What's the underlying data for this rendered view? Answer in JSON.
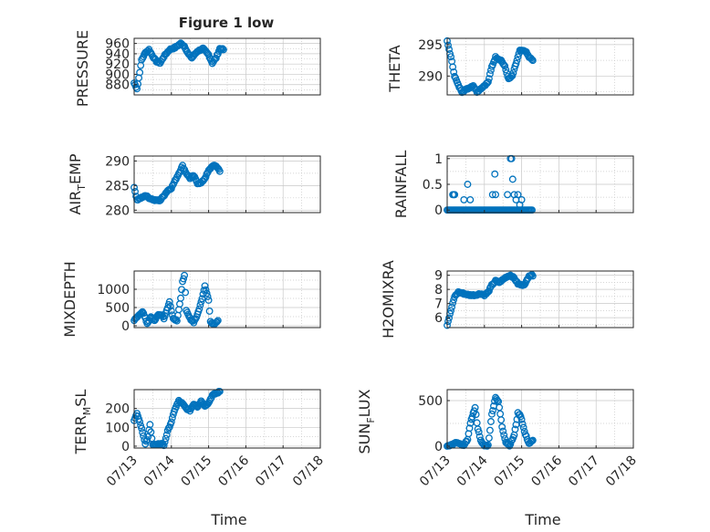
{
  "figure": {
    "title": "Figure 1 low"
  },
  "time_ticks": [
    "07/13",
    "07/14",
    "07/15",
    "07/16",
    "07/17",
    "07/18"
  ],
  "xlabel": "Time",
  "colors": {
    "marker": "#0072BD",
    "axis": "#262626",
    "grid": "#c8c8c8",
    "background": "#ffffff"
  },
  "chart_data": [
    {
      "type": "scatter",
      "ylabel": "PRESSURE",
      "title": "Figure 1 low",
      "xlabel": "",
      "ylim": [
        860,
        970
      ],
      "yticks": [
        880,
        900,
        920,
        940,
        960
      ],
      "xlim": [
        "07/13",
        "07/18"
      ],
      "grid": true,
      "anchors": [
        [
          0,
          883
        ],
        [
          0.08,
          872
        ],
        [
          0.14,
          900
        ],
        [
          0.2,
          928
        ],
        [
          0.3,
          942
        ],
        [
          0.4,
          948
        ],
        [
          0.5,
          935
        ],
        [
          0.6,
          925
        ],
        [
          0.7,
          922
        ],
        [
          0.8,
          935
        ],
        [
          0.95,
          948
        ],
        [
          1.1,
          952
        ],
        [
          1.25,
          960
        ],
        [
          1.35,
          955
        ],
        [
          1.45,
          940
        ],
        [
          1.55,
          932
        ],
        [
          1.7,
          945
        ],
        [
          1.85,
          950
        ],
        [
          2.0,
          938
        ],
        [
          2.1,
          922
        ],
        [
          2.2,
          932
        ],
        [
          2.3,
          950
        ],
        [
          2.4,
          948
        ]
      ]
    },
    {
      "type": "scatter",
      "ylabel": "THETA",
      "xlabel": "",
      "ylim": [
        287,
        296
      ],
      "yticks": [
        290,
        295
      ],
      "xlim": [
        "07/13",
        "07/18"
      ],
      "grid": true,
      "anchors": [
        [
          0,
          295.5
        ],
        [
          0.1,
          293
        ],
        [
          0.2,
          290
        ],
        [
          0.3,
          288.5
        ],
        [
          0.4,
          287.5
        ],
        [
          0.55,
          288
        ],
        [
          0.7,
          288.5
        ],
        [
          0.8,
          287.5
        ],
        [
          0.9,
          288
        ],
        [
          1.0,
          288.5
        ],
        [
          1.1,
          289
        ],
        [
          1.2,
          291.5
        ],
        [
          1.3,
          293
        ],
        [
          1.45,
          292.5
        ],
        [
          1.55,
          291.5
        ],
        [
          1.65,
          289.5
        ],
        [
          1.75,
          290
        ],
        [
          1.85,
          292
        ],
        [
          1.95,
          294
        ],
        [
          2.1,
          294
        ],
        [
          2.2,
          293
        ],
        [
          2.3,
          292.5
        ]
      ]
    },
    {
      "type": "scatter",
      "ylabel": "AIR_TEMP",
      "xlabel": "",
      "ylim": [
        279.5,
        291
      ],
      "yticks": [
        280,
        285,
        290
      ],
      "xlim": [
        "07/13",
        "07/18"
      ],
      "grid": true,
      "anchors": [
        [
          0,
          284.5
        ],
        [
          0.08,
          282
        ],
        [
          0.18,
          282.5
        ],
        [
          0.3,
          283
        ],
        [
          0.4,
          282.5
        ],
        [
          0.55,
          282
        ],
        [
          0.7,
          282
        ],
        [
          0.8,
          283
        ],
        [
          0.9,
          284
        ],
        [
          1.0,
          284.5
        ],
        [
          1.1,
          286
        ],
        [
          1.2,
          287.5
        ],
        [
          1.3,
          289
        ],
        [
          1.4,
          287.5
        ],
        [
          1.5,
          286.5
        ],
        [
          1.6,
          287
        ],
        [
          1.7,
          285.5
        ],
        [
          1.8,
          285.5
        ],
        [
          1.9,
          286.5
        ],
        [
          2.0,
          288
        ],
        [
          2.1,
          289
        ],
        [
          2.2,
          289
        ],
        [
          2.3,
          288
        ]
      ]
    },
    {
      "type": "scatter",
      "ylabel": "RAINFALL",
      "xlabel": "",
      "ylim": [
        -0.05,
        1.05
      ],
      "yticks": [
        0,
        0.5,
        1
      ],
      "xlim": [
        "07/13",
        "07/18"
      ],
      "grid": true,
      "baseline_range": [
        0,
        2.3
      ],
      "nonzero_points": [
        [
          0.15,
          0.3
        ],
        [
          0.18,
          0.3
        ],
        [
          0.2,
          0.3
        ],
        [
          0.45,
          0.2
        ],
        [
          0.55,
          0.5
        ],
        [
          0.62,
          0.2
        ],
        [
          1.22,
          0.3
        ],
        [
          1.28,
          0.7
        ],
        [
          1.3,
          0.3
        ],
        [
          1.62,
          0.3
        ],
        [
          1.7,
          1.0
        ],
        [
          1.73,
          1.0
        ],
        [
          1.76,
          0.6
        ],
        [
          1.8,
          0.3
        ],
        [
          1.85,
          0.2
        ],
        [
          1.9,
          0.3
        ],
        [
          1.95,
          0.1
        ],
        [
          2.0,
          0.2
        ]
      ]
    },
    {
      "type": "scatter",
      "ylabel": "MIXDEPTH",
      "xlabel": "",
      "ylim": [
        -50,
        1500
      ],
      "yticks": [
        0,
        500,
        1000
      ],
      "xlim": [
        "07/13",
        "07/18"
      ],
      "grid": true,
      "anchors": [
        [
          0,
          150
        ],
        [
          0.12,
          280
        ],
        [
          0.22,
          400
        ],
        [
          0.3,
          200
        ],
        [
          0.35,
          50
        ],
        [
          0.45,
          250
        ],
        [
          0.55,
          150
        ],
        [
          0.65,
          300
        ],
        [
          0.75,
          300
        ],
        [
          0.8,
          200
        ],
        [
          0.9,
          500
        ],
        [
          0.95,
          650
        ],
        [
          1.05,
          200
        ],
        [
          1.15,
          150
        ],
        [
          1.25,
          750
        ],
        [
          1.3,
          1200
        ],
        [
          1.35,
          1400
        ],
        [
          1.4,
          400
        ],
        [
          1.5,
          200
        ],
        [
          1.6,
          100
        ],
        [
          1.7,
          300
        ],
        [
          1.8,
          650
        ],
        [
          1.9,
          1100
        ],
        [
          2.0,
          700
        ],
        [
          2.05,
          100
        ],
        [
          2.15,
          50
        ],
        [
          2.25,
          150
        ]
      ]
    },
    {
      "type": "scatter",
      "ylabel": "H2OMIXRA",
      "xlabel": "",
      "ylim": [
        5.3,
        9.3
      ],
      "yticks": [
        6,
        7,
        8,
        9
      ],
      "xlim": [
        "07/13",
        "07/18"
      ],
      "grid": true,
      "anchors": [
        [
          0,
          5.5
        ],
        [
          0.1,
          6.5
        ],
        [
          0.2,
          7.5
        ],
        [
          0.3,
          7.8
        ],
        [
          0.45,
          7.7
        ],
        [
          0.6,
          7.6
        ],
        [
          0.75,
          7.6
        ],
        [
          0.9,
          7.7
        ],
        [
          1.0,
          7.6
        ],
        [
          1.1,
          7.8
        ],
        [
          1.2,
          8.3
        ],
        [
          1.3,
          8.6
        ],
        [
          1.4,
          8.5
        ],
        [
          1.5,
          8.7
        ],
        [
          1.6,
          8.9
        ],
        [
          1.7,
          9.0
        ],
        [
          1.8,
          8.8
        ],
        [
          1.9,
          8.4
        ],
        [
          2.0,
          8.3
        ],
        [
          2.1,
          8.4
        ],
        [
          2.2,
          9.0
        ],
        [
          2.3,
          9.0
        ]
      ]
    },
    {
      "type": "scatter",
      "ylabel": "TERR_MSL",
      "xlabel": "",
      "ylim": [
        -10,
        300
      ],
      "yticks": [
        0,
        100,
        200
      ],
      "xlim": [
        "07/13",
        "07/18"
      ],
      "grid": true,
      "anchors": [
        [
          0,
          140
        ],
        [
          0.08,
          175
        ],
        [
          0.15,
          130
        ],
        [
          0.22,
          80
        ],
        [
          0.3,
          10
        ],
        [
          0.38,
          50
        ],
        [
          0.42,
          120
        ],
        [
          0.5,
          10
        ],
        [
          0.6,
          5
        ],
        [
          0.7,
          15
        ],
        [
          0.8,
          5
        ],
        [
          0.9,
          80
        ],
        [
          1.0,
          130
        ],
        [
          1.1,
          200
        ],
        [
          1.2,
          240
        ],
        [
          1.3,
          225
        ],
        [
          1.4,
          200
        ],
        [
          1.5,
          190
        ],
        [
          1.6,
          225
        ],
        [
          1.7,
          210
        ],
        [
          1.8,
          240
        ],
        [
          1.9,
          215
        ],
        [
          2.0,
          230
        ],
        [
          2.1,
          270
        ],
        [
          2.2,
          280
        ],
        [
          2.3,
          290
        ]
      ]
    },
    {
      "type": "scatter",
      "ylabel": "SUN_FLUX",
      "xlabel": "",
      "ylim": [
        -20,
        620
      ],
      "yticks": [
        0,
        500
      ],
      "xlim": [
        "07/13",
        "07/18"
      ],
      "grid": true,
      "anchors": [
        [
          0,
          5
        ],
        [
          0.15,
          20
        ],
        [
          0.25,
          40
        ],
        [
          0.35,
          20
        ],
        [
          0.45,
          5
        ],
        [
          0.55,
          80
        ],
        [
          0.65,
          300
        ],
        [
          0.75,
          420
        ],
        [
          0.82,
          200
        ],
        [
          0.92,
          40
        ],
        [
          1.0,
          5
        ],
        [
          1.1,
          10
        ],
        [
          1.2,
          350
        ],
        [
          1.3,
          540
        ],
        [
          1.38,
          480
        ],
        [
          1.48,
          200
        ],
        [
          1.58,
          40
        ],
        [
          1.68,
          10
        ],
        [
          1.8,
          120
        ],
        [
          1.9,
          360
        ],
        [
          1.98,
          330
        ],
        [
          2.08,
          150
        ],
        [
          2.2,
          30
        ],
        [
          2.3,
          60
        ]
      ]
    }
  ]
}
